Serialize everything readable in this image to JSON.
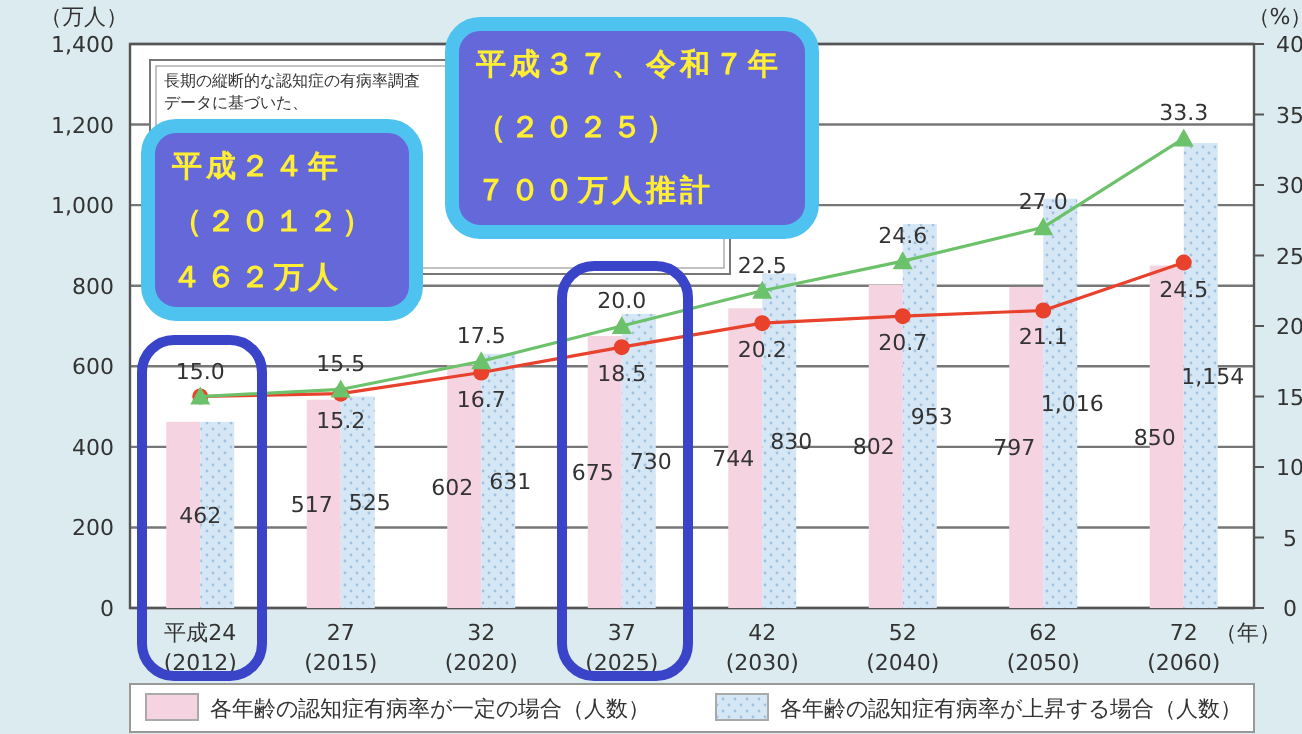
{
  "chart_data": {
    "type": "bar",
    "ylabel": "（万人）",
    "y2label": "（%）",
    "xlabel": "（年）",
    "categories": [
      "平成24 (2012)",
      "27 (2015)",
      "32 (2020)",
      "37 (2025)",
      "42 (2030)",
      "52 (2040)",
      "62 (2050)",
      "72 (2060)"
    ],
    "series": [
      {
        "name": "各年齢の認知症有病率が一定の場合（人数）",
        "color": "#f5d3e0",
        "values": [
          462,
          517,
          602,
          675,
          744,
          802,
          797,
          850
        ],
        "value_labels": [
          "462",
          "517",
          "602",
          "675",
          "744",
          "802",
          "797",
          "850"
        ]
      },
      {
        "name": "各年齢の認知症有病率が上昇する場合（人数）",
        "color": "#d5e6f5",
        "values": [
          462,
          525,
          631,
          730,
          830,
          953,
          1016,
          1154
        ],
        "value_labels": [
          null,
          "525",
          "631",
          "730",
          "830",
          "953",
          "1,016",
          "1,154"
        ]
      },
      {
        "type": "line",
        "axis": "y2",
        "color": "#e8412c",
        "marker": "circle",
        "values": [
          15.0,
          15.2,
          16.7,
          18.5,
          20.2,
          20.7,
          21.1,
          24.5
        ],
        "value_labels": [
          null,
          "15.2",
          "16.7",
          "18.5",
          "20.2",
          "20.7",
          "21.1",
          "24.5"
        ]
      },
      {
        "type": "line",
        "axis": "y2",
        "color": "#6cc26a",
        "marker": "triangle",
        "values": [
          15.0,
          15.5,
          17.5,
          20.0,
          22.5,
          24.6,
          27.0,
          33.3
        ],
        "value_labels": [
          "15.0",
          "15.5",
          "17.5",
          "20.0",
          "22.5",
          "24.6",
          "27.0",
          "33.3"
        ]
      }
    ],
    "ylim": [
      0,
      1400
    ],
    "yticks": [
      0,
      200,
      400,
      600,
      800,
      {
        "value": 1000,
        "label": "1,000"
      },
      {
        "value": 1200,
        "label": "1,200"
      },
      {
        "value": 1400,
        "label": "1,400"
      }
    ],
    "y2lim": [
      0,
      40
    ],
    "y2ticks": [
      0,
      5,
      10,
      15,
      20,
      25,
      30,
      35,
      40
    ],
    "grid": "y",
    "legend": "bottom",
    "annotations": [
      "長期の縦断的な認知症の有病率調査",
      "データに基づいた、",
      "平成２４年",
      "（２０１２）",
      "４６２万人",
      "平成３７、令和７年",
      "（２０２５）",
      "７００万人推計"
    ]
  }
}
